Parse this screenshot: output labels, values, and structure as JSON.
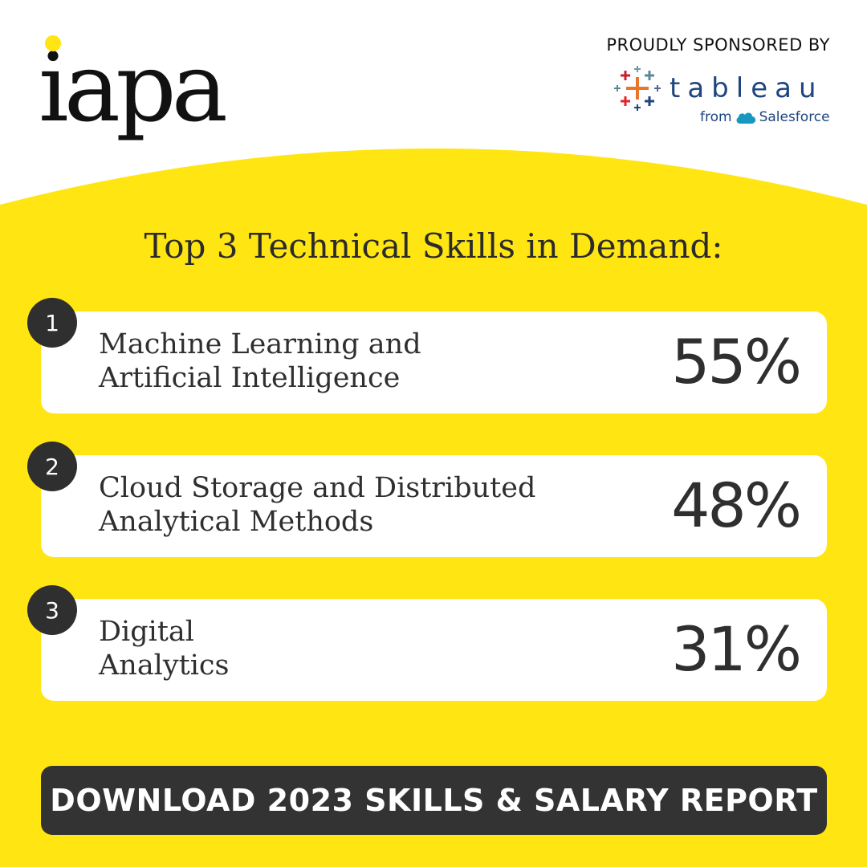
{
  "brand": {
    "logo_text": "iapa",
    "accent_color": "#FFE512"
  },
  "sponsor": {
    "label": "PROUDLY SPONSORED BY",
    "name": "tableau",
    "from_text": "from",
    "parent_name": "Salesforce",
    "icon": "tableau-logo-icon"
  },
  "heading": "Top 3 Technical Skills in Demand:",
  "skills": [
    {
      "rank": "1",
      "label": "Machine Learning and\nArtificial Intelligence",
      "percent": "55%"
    },
    {
      "rank": "2",
      "label": "Cloud Storage and Distributed\nAnalytical Methods",
      "percent": "48%"
    },
    {
      "rank": "3",
      "label": "Digital\nAnalytics",
      "percent": "31%"
    }
  ],
  "cta": {
    "label": "DOWNLOAD 2023 SKILLS & SALARY REPORT"
  }
}
